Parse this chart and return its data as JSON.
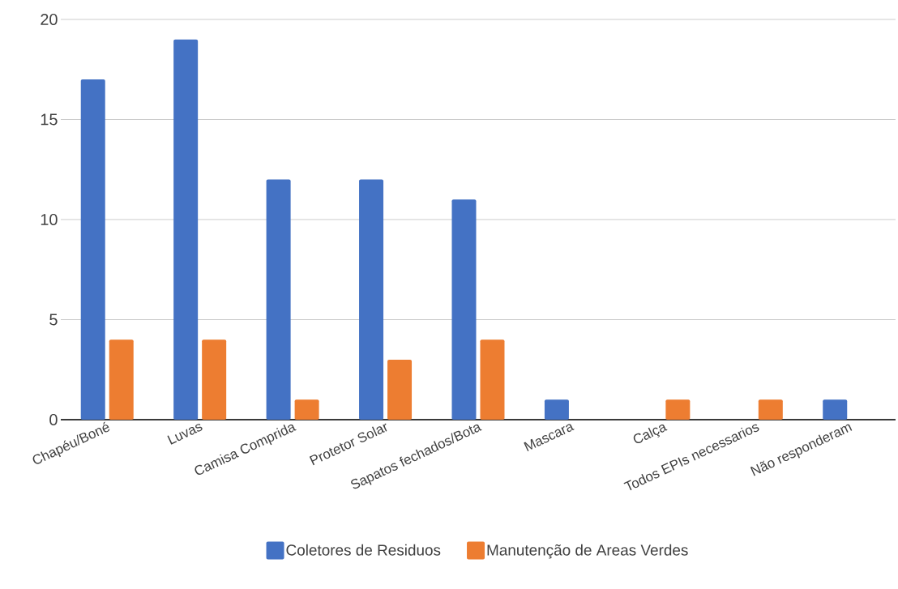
{
  "chart_data": {
    "type": "bar",
    "categories": [
      "Chapéu/Boné",
      "Luvas",
      "Camisa Comprida",
      "Protetor Solar",
      "Sapatos fechados/Bota",
      "Mascara",
      "Calça",
      "Todos EPIs necessarios",
      "Não responderam"
    ],
    "series": [
      {
        "name": "Coletores de Residuos",
        "color": "#4472c4",
        "values": [
          17,
          19,
          12,
          12,
          11,
          1,
          0,
          0,
          1
        ]
      },
      {
        "name": "Manutenção de Areas Verdes",
        "color": "#ed7d31",
        "values": [
          4,
          4,
          1,
          3,
          4,
          0,
          1,
          1,
          0
        ]
      }
    ],
    "ylim": [
      0,
      20
    ],
    "yticks": [
      0,
      5,
      10,
      15,
      20
    ],
    "grid": "y",
    "legend": "bottom"
  }
}
